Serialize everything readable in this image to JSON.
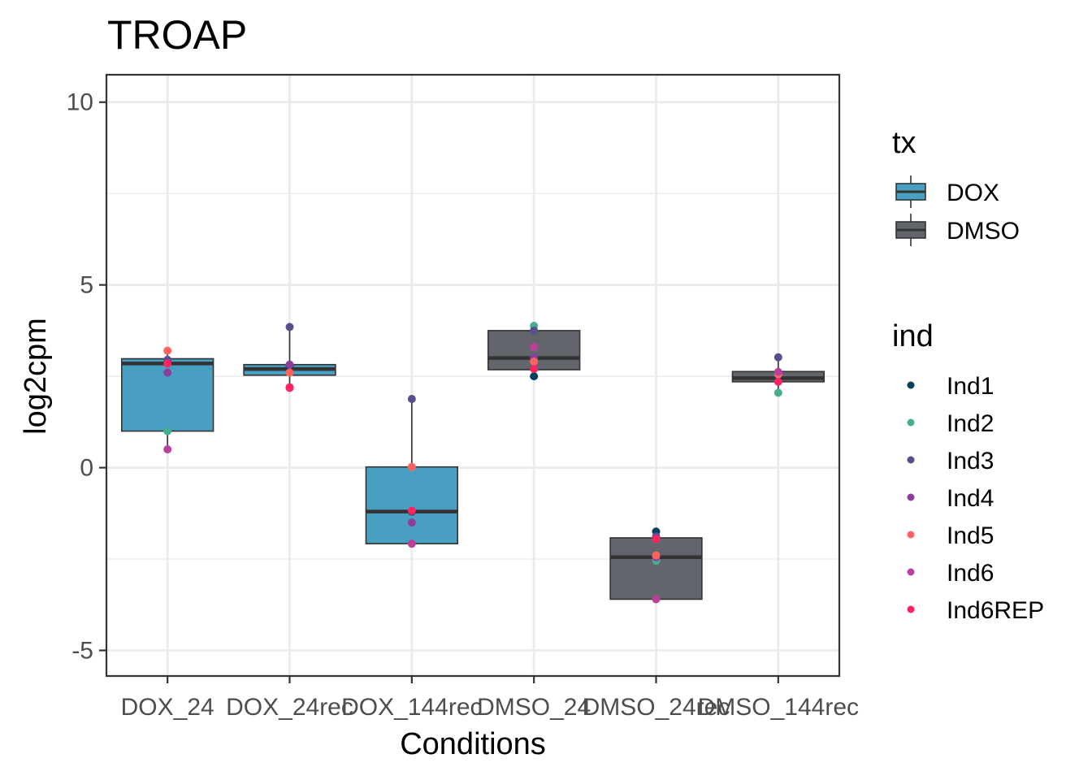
{
  "chart_data": {
    "type": "box",
    "title": "TROAP",
    "xlabel": "Conditions",
    "ylabel": "log2cpm",
    "ylim": [
      -5.7,
      10.75
    ],
    "yticks": [
      -5,
      0,
      5,
      10
    ],
    "ytick_labels": [
      "-5",
      "0",
      "5",
      "10"
    ],
    "grid": true,
    "categories": [
      "DOX_24",
      "DOX_24rec",
      "DOX_144rec",
      "DMSO_24",
      "DMSO_24rec",
      "DMSO_144rec"
    ],
    "category_tx": [
      "DOX",
      "DOX",
      "DOX",
      "DMSO",
      "DMSO",
      "DMSO"
    ],
    "boxes": [
      {
        "category": "DOX_24",
        "tx": "DOX",
        "q1": 1.0,
        "median": 2.85,
        "q3": 2.98,
        "whisker_low": 0.5,
        "whisker_high": 3.2
      },
      {
        "category": "DOX_24rec",
        "tx": "DOX",
        "q1": 2.53,
        "median": 2.7,
        "q3": 2.82,
        "whisker_low": 2.18,
        "whisker_high": 3.85
      },
      {
        "category": "DOX_144rec",
        "tx": "DOX",
        "q1": -2.08,
        "median": -1.2,
        "q3": 0.02,
        "whisker_low": -2.08,
        "whisker_high": 1.88
      },
      {
        "category": "DMSO_24",
        "tx": "DMSO",
        "q1": 2.68,
        "median": 3.0,
        "q3": 3.75,
        "whisker_low": 2.5,
        "whisker_high": 3.88
      },
      {
        "category": "DMSO_24rec",
        "tx": "DMSO",
        "q1": -3.6,
        "median": -2.45,
        "q3": -1.92,
        "whisker_low": -3.6,
        "whisker_high": -1.75
      },
      {
        "category": "DMSO_144rec",
        "tx": "DMSO",
        "q1": 2.35,
        "median": 2.45,
        "q3": 2.63,
        "whisker_low": 2.05,
        "whisker_high": 3.02
      }
    ],
    "points": [
      {
        "category": "DOX_24",
        "ind": "Ind1",
        "y": 2.9
      },
      {
        "category": "DOX_24",
        "ind": "Ind2",
        "y": 1.0
      },
      {
        "category": "DOX_24",
        "ind": "Ind3",
        "y": 2.95
      },
      {
        "category": "DOX_24",
        "ind": "Ind4",
        "y": 2.6
      },
      {
        "category": "DOX_24",
        "ind": "Ind5",
        "y": 3.2
      },
      {
        "category": "DOX_24",
        "ind": "Ind6",
        "y": 0.5
      },
      {
        "category": "DOX_24",
        "ind": "Ind6REP",
        "y": 2.85
      },
      {
        "category": "DOX_24rec",
        "ind": "Ind1",
        "y": 2.78
      },
      {
        "category": "DOX_24rec",
        "ind": "Ind2",
        "y": 2.6
      },
      {
        "category": "DOX_24rec",
        "ind": "Ind3",
        "y": 3.85
      },
      {
        "category": "DOX_24rec",
        "ind": "Ind4",
        "y": 2.82
      },
      {
        "category": "DOX_24rec",
        "ind": "Ind5",
        "y": 2.6
      },
      {
        "category": "DOX_24rec",
        "ind": "Ind6",
        "y": 2.18
      },
      {
        "category": "DOX_24rec",
        "ind": "Ind6REP",
        "y": 2.2
      },
      {
        "category": "DOX_144rec",
        "ind": "Ind1",
        "y": -1.2
      },
      {
        "category": "DOX_144rec",
        "ind": "Ind2",
        "y": 0.0
      },
      {
        "category": "DOX_144rec",
        "ind": "Ind3",
        "y": 1.88
      },
      {
        "category": "DOX_144rec",
        "ind": "Ind4",
        "y": -1.5
      },
      {
        "category": "DOX_144rec",
        "ind": "Ind5",
        "y": 0.02
      },
      {
        "category": "DOX_144rec",
        "ind": "Ind6",
        "y": -2.08
      },
      {
        "category": "DOX_144rec",
        "ind": "Ind6REP",
        "y": -1.18
      },
      {
        "category": "DMSO_24",
        "ind": "Ind1",
        "y": 2.5
      },
      {
        "category": "DMSO_24",
        "ind": "Ind2",
        "y": 3.88
      },
      {
        "category": "DMSO_24",
        "ind": "Ind3",
        "y": 3.75
      },
      {
        "category": "DMSO_24",
        "ind": "Ind4",
        "y": 3.0
      },
      {
        "category": "DMSO_24",
        "ind": "Ind5",
        "y": 2.9
      },
      {
        "category": "DMSO_24",
        "ind": "Ind6",
        "y": 3.3
      },
      {
        "category": "DMSO_24",
        "ind": "Ind6REP",
        "y": 2.7
      },
      {
        "category": "DMSO_24rec",
        "ind": "Ind1",
        "y": -1.75
      },
      {
        "category": "DMSO_24rec",
        "ind": "Ind2",
        "y": -2.55
      },
      {
        "category": "DMSO_24rec",
        "ind": "Ind3",
        "y": -1.88
      },
      {
        "category": "DMSO_24rec",
        "ind": "Ind4",
        "y": -2.45
      },
      {
        "category": "DMSO_24rec",
        "ind": "Ind5",
        "y": -2.4
      },
      {
        "category": "DMSO_24rec",
        "ind": "Ind6",
        "y": -3.6
      },
      {
        "category": "DMSO_24rec",
        "ind": "Ind6REP",
        "y": -1.95
      },
      {
        "category": "DMSO_144rec",
        "ind": "Ind1",
        "y": 2.45
      },
      {
        "category": "DMSO_144rec",
        "ind": "Ind2",
        "y": 2.05
      },
      {
        "category": "DMSO_144rec",
        "ind": "Ind3",
        "y": 3.02
      },
      {
        "category": "DMSO_144rec",
        "ind": "Ind4",
        "y": 2.6
      },
      {
        "category": "DMSO_144rec",
        "ind": "Ind5",
        "y": 2.55
      },
      {
        "category": "DMSO_144rec",
        "ind": "Ind6",
        "y": 2.62
      },
      {
        "category": "DMSO_144rec",
        "ind": "Ind6REP",
        "y": 2.35
      }
    ],
    "legend_tx": {
      "title": "tx",
      "entries": [
        {
          "label": "DOX",
          "color": "#499FC1"
        },
        {
          "label": "DMSO",
          "color": "#62656C"
        }
      ]
    },
    "legend_ind": {
      "title": "ind",
      "entries": [
        {
          "label": "Ind1",
          "color": "#003F5C"
        },
        {
          "label": "Ind2",
          "color": "#45AE91"
        },
        {
          "label": "Ind3",
          "color": "#58508D"
        },
        {
          "label": "Ind4",
          "color": "#8B3E9B"
        },
        {
          "label": "Ind5",
          "color": "#FF6361"
        },
        {
          "label": "Ind6",
          "color": "#BC4099"
        },
        {
          "label": "Ind6REP",
          "color": "#FF2362"
        }
      ]
    },
    "legend_placement": "right"
  }
}
